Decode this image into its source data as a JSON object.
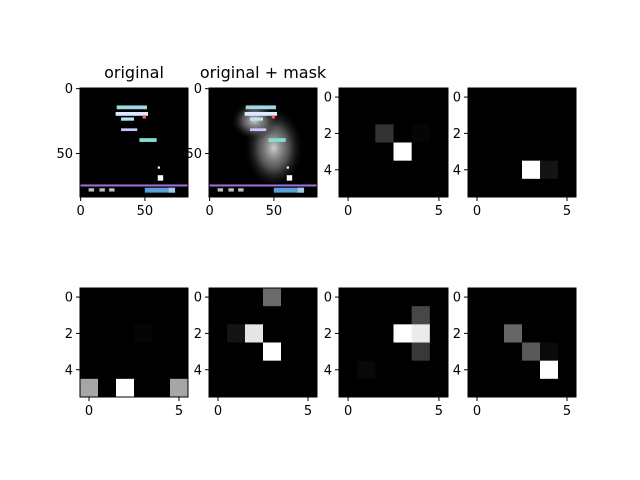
{
  "figure": {
    "background": "#ffffff",
    "panels": [
      {
        "id": "original",
        "title": "original",
        "kind": "game-frame",
        "xticks": [
          "0",
          "50"
        ],
        "yticks": [
          "0",
          "50"
        ],
        "mask": false
      },
      {
        "id": "original-mask",
        "title": "original + mask",
        "kind": "game-frame",
        "xticks": [
          "0",
          "50"
        ],
        "yticks": [
          "0",
          "50"
        ],
        "mask": true
      },
      {
        "id": "grid-1",
        "title": "",
        "kind": "grid",
        "xticks": [
          "0",
          "5"
        ],
        "yticks": [
          "0",
          "2",
          "4"
        ],
        "cells": [
          [
            0,
            0,
            0,
            0,
            0,
            0
          ],
          [
            0,
            0,
            0,
            0,
            0,
            0
          ],
          [
            0,
            0,
            0.2,
            0,
            0.02,
            0
          ],
          [
            0,
            0,
            0,
            1,
            0,
            0
          ],
          [
            0,
            0,
            0,
            0,
            0,
            0
          ],
          [
            0,
            0,
            0,
            0,
            0,
            0
          ]
        ]
      },
      {
        "id": "grid-2",
        "title": "",
        "kind": "grid",
        "xticks": [
          "0",
          "5"
        ],
        "yticks": [
          "0",
          "2",
          "4"
        ],
        "cells": [
          [
            0,
            0,
            0,
            0,
            0,
            0
          ],
          [
            0,
            0,
            0,
            0,
            0,
            0
          ],
          [
            0,
            0,
            0,
            0,
            0,
            0
          ],
          [
            0,
            0,
            0,
            0,
            0,
            0
          ],
          [
            0,
            0,
            0,
            1,
            0.08,
            0
          ],
          [
            0,
            0,
            0,
            0,
            0,
            0
          ]
        ]
      },
      {
        "id": "grid-3",
        "title": "",
        "kind": "grid",
        "xticks": [
          "0",
          "5"
        ],
        "yticks": [
          "0",
          "2",
          "4"
        ],
        "cells": [
          [
            0,
            0,
            0,
            0,
            0,
            0
          ],
          [
            0,
            0,
            0,
            0,
            0,
            0
          ],
          [
            0,
            0,
            0,
            0.02,
            0,
            0
          ],
          [
            0,
            0,
            0,
            0,
            0,
            0
          ],
          [
            0,
            0,
            0,
            0,
            0,
            0
          ],
          [
            0.65,
            0,
            1,
            0,
            0,
            0.65
          ]
        ]
      },
      {
        "id": "grid-4",
        "title": "",
        "kind": "grid",
        "xticks": [
          "0",
          "5"
        ],
        "yticks": [
          "0",
          "2",
          "4"
        ],
        "cells": [
          [
            0,
            0,
            0,
            0.42,
            0,
            0
          ],
          [
            0,
            0,
            0,
            0,
            0,
            0
          ],
          [
            0,
            0.08,
            0.9,
            0,
            0,
            0
          ],
          [
            0,
            0,
            0,
            1,
            0,
            0
          ],
          [
            0,
            0,
            0,
            0,
            0,
            0
          ],
          [
            0,
            0,
            0,
            0,
            0,
            0
          ]
        ]
      },
      {
        "id": "grid-5",
        "title": "",
        "kind": "grid",
        "xticks": [
          "0",
          "5"
        ],
        "yticks": [
          "0",
          "2",
          "4"
        ],
        "cells": [
          [
            0,
            0,
            0,
            0,
            0,
            0
          ],
          [
            0,
            0,
            0,
            0,
            0.28,
            0
          ],
          [
            0,
            0,
            0,
            1,
            0.92,
            0
          ],
          [
            0,
            0,
            0,
            0,
            0.22,
            0
          ],
          [
            0,
            0.03,
            0,
            0,
            0,
            0
          ],
          [
            0,
            0,
            0,
            0,
            0,
            0
          ]
        ]
      },
      {
        "id": "grid-6",
        "title": "",
        "kind": "grid",
        "xticks": [
          "0",
          "5"
        ],
        "yticks": [
          "0",
          "2",
          "4"
        ],
        "cells": [
          [
            0,
            0,
            0,
            0,
            0,
            0
          ],
          [
            0,
            0,
            0,
            0,
            0,
            0
          ],
          [
            0,
            0,
            0.4,
            0,
            0,
            0
          ],
          [
            0,
            0,
            0,
            0.35,
            0.04,
            0
          ],
          [
            0,
            0,
            0,
            0,
            1,
            0
          ],
          [
            0,
            0,
            0,
            0,
            0,
            0
          ]
        ]
      }
    ]
  }
}
